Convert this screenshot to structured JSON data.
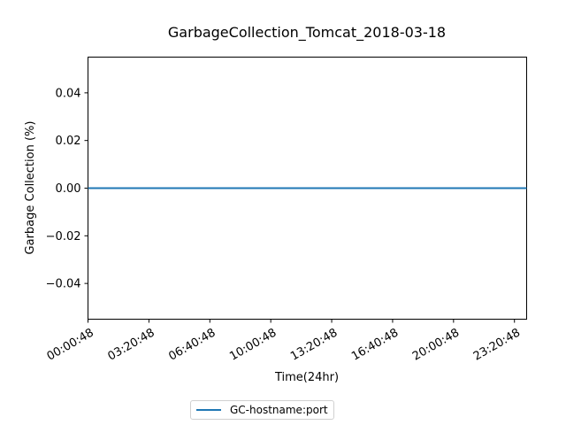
{
  "chart_data": {
    "type": "line",
    "title": "GarbageCollection_Tomcat_2018-03-18",
    "xlabel": "Time(24hr)",
    "ylabel": "Garbage Collection (%)",
    "ylim": [
      -0.055,
      0.055
    ],
    "yticks": [
      -0.04,
      -0.02,
      0.0,
      0.02,
      0.04
    ],
    "ytick_labels": [
      "−0.04",
      "−0.02",
      "0.00",
      "0.02",
      "0.04"
    ],
    "xticks": [
      "00:00:48",
      "03:20:48",
      "06:40:48",
      "10:00:48",
      "13:20:48",
      "16:40:48",
      "20:00:48",
      "23:20:48"
    ],
    "grid": false,
    "legend_position": "below",
    "series": [
      {
        "name": "GC-hostname:port",
        "color": "#1f77b4",
        "x": [
          "00:00:48",
          "03:20:48",
          "06:40:48",
          "10:00:48",
          "13:20:48",
          "16:40:48",
          "20:00:48",
          "23:20:48",
          "24:00:48"
        ],
        "values": [
          0,
          0,
          0,
          0,
          0,
          0,
          0,
          0,
          0
        ]
      }
    ]
  }
}
